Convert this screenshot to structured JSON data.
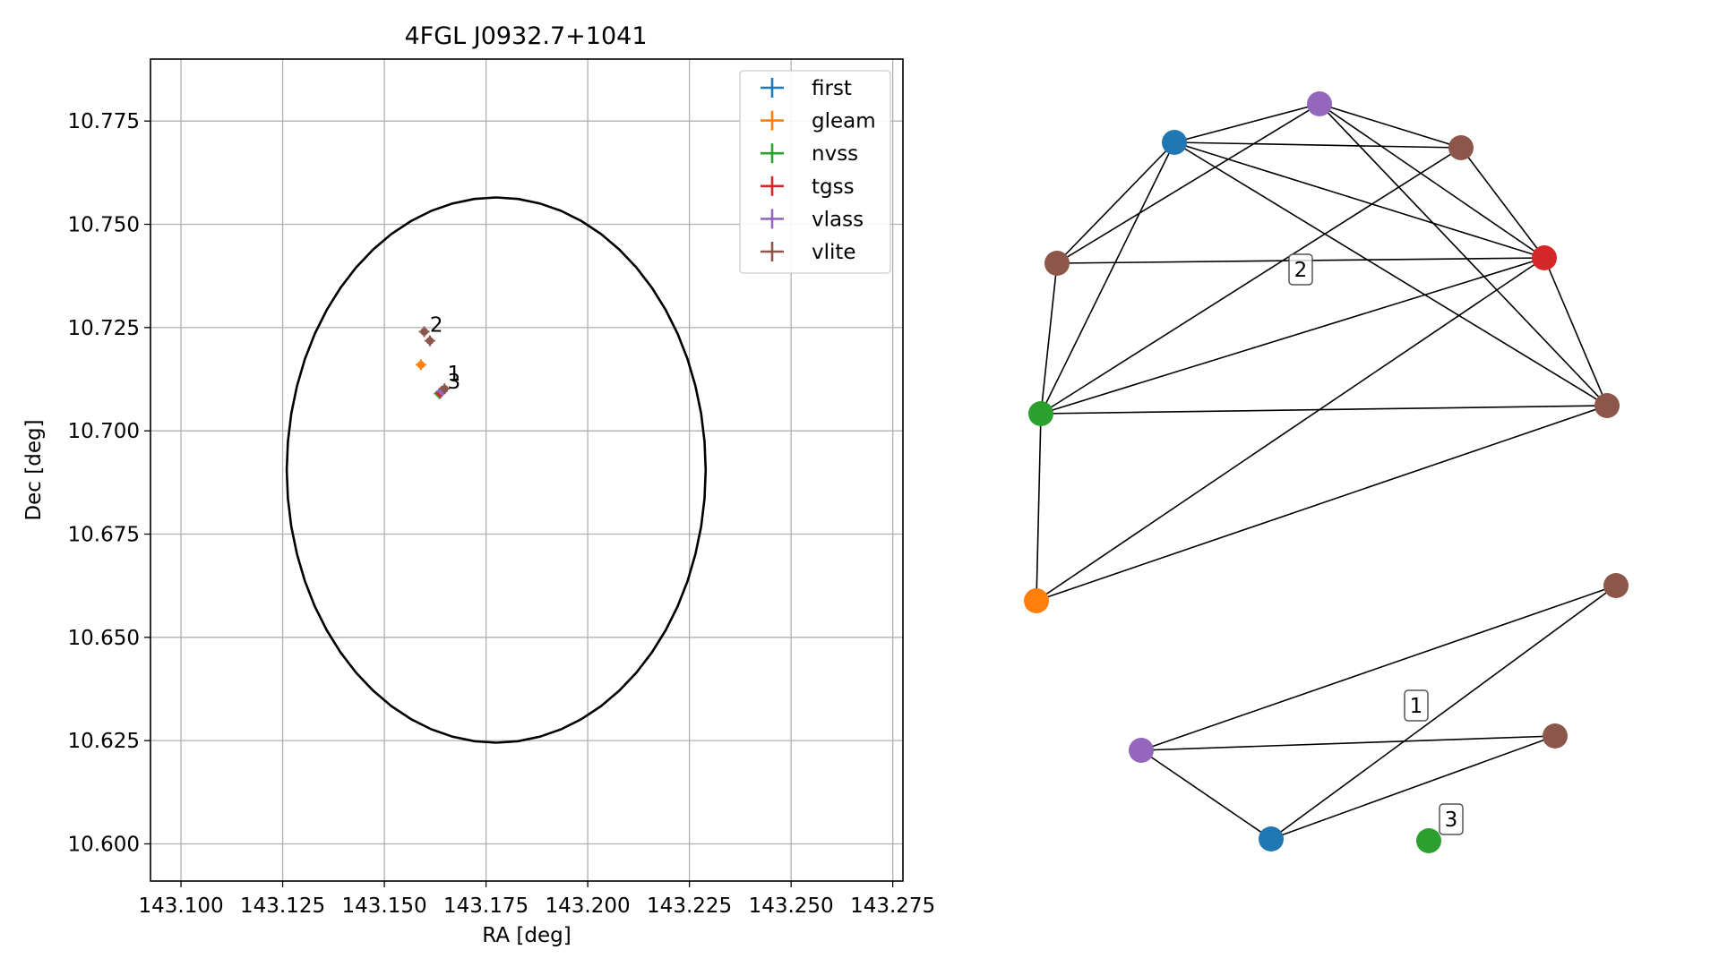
{
  "chart_data": [
    {
      "type": "scatter",
      "title": "4FGL J0932.7+1041",
      "xlabel": "RA [deg]",
      "ylabel": "Dec [deg]",
      "xlim": [
        143.0925,
        143.2775
      ],
      "ylim": [
        10.591,
        10.79
      ],
      "xticks": [
        143.1,
        143.125,
        143.15,
        143.175,
        143.2,
        143.225,
        143.25,
        143.275
      ],
      "xtick_labels": [
        "143.100",
        "143.125",
        "143.150",
        "143.175",
        "143.200",
        "143.225",
        "143.250",
        "143.275"
      ],
      "yticks": [
        10.6,
        10.625,
        10.65,
        10.675,
        10.7,
        10.725,
        10.75,
        10.775
      ],
      "ytick_labels": [
        "10.600",
        "10.625",
        "10.650",
        "10.675",
        "10.700",
        "10.725",
        "10.750",
        "10.775"
      ],
      "grid": true,
      "legend_position": "top-right",
      "ellipse": {
        "center": [
          143.1775,
          10.6905
        ],
        "ra_radius": 0.0515,
        "dec_radius": 0.066,
        "color": "#000000"
      },
      "series": [
        {
          "name": "first",
          "color": "#1f77b4",
          "points": [
            [
              143.164,
              10.7095
            ]
          ]
        },
        {
          "name": "gleam",
          "color": "#ff7f0e",
          "points": [
            [
              143.159,
              10.716
            ]
          ]
        },
        {
          "name": "nvss",
          "color": "#2ca02c",
          "points": [
            [
              143.1635,
              10.709
            ]
          ]
        },
        {
          "name": "tgss",
          "color": "#d62728",
          "points": [
            [
              143.1638,
              10.7092
            ]
          ]
        },
        {
          "name": "vlass",
          "color": "#9467bd",
          "points": [
            [
              143.1642,
              10.7096
            ]
          ]
        },
        {
          "name": "vlite",
          "color": "#8c564b",
          "points": [
            [
              143.1598,
              10.724
            ],
            [
              143.1612,
              10.7218
            ],
            [
              143.1648,
              10.7102
            ]
          ]
        }
      ],
      "annotations": [
        {
          "text": "2",
          "x": 143.1612,
          "y": 10.724
        },
        {
          "text": "1",
          "x": 143.1655,
          "y": 10.7122
        },
        {
          "text": "3",
          "x": 143.1655,
          "y": 10.7102
        }
      ]
    },
    {
      "type": "network",
      "clusters": [
        {
          "label": "2",
          "nodes": [
            {
              "id": "a",
              "series": "first",
              "color": "#1f77b4"
            },
            {
              "id": "b",
              "series": "vlass",
              "color": "#9467bd"
            },
            {
              "id": "c",
              "series": "vlite",
              "color": "#8c564b"
            },
            {
              "id": "d",
              "series": "vlite",
              "color": "#8c564b"
            },
            {
              "id": "e",
              "series": "tgss",
              "color": "#d62728"
            },
            {
              "id": "f",
              "series": "nvss",
              "color": "#2ca02c"
            },
            {
              "id": "g",
              "series": "vlite",
              "color": "#8c564b"
            },
            {
              "id": "h",
              "series": "gleam",
              "color": "#ff7f0e"
            }
          ],
          "edges": [
            [
              "a",
              "b"
            ],
            [
              "a",
              "c"
            ],
            [
              "a",
              "d"
            ],
            [
              "a",
              "e"
            ],
            [
              "a",
              "f"
            ],
            [
              "a",
              "g"
            ],
            [
              "b",
              "c"
            ],
            [
              "b",
              "d"
            ],
            [
              "b",
              "e"
            ],
            [
              "b",
              "g"
            ],
            [
              "c",
              "e"
            ],
            [
              "c",
              "f"
            ],
            [
              "d",
              "e"
            ],
            [
              "d",
              "f"
            ],
            [
              "e",
              "f"
            ],
            [
              "e",
              "g"
            ],
            [
              "e",
              "h"
            ],
            [
              "f",
              "g"
            ],
            [
              "f",
              "h"
            ],
            [
              "g",
              "h"
            ]
          ]
        },
        {
          "label": "1",
          "nodes": [
            {
              "id": "p",
              "series": "vlite",
              "color": "#8c564b"
            },
            {
              "id": "q",
              "series": "vlass",
              "color": "#9467bd"
            },
            {
              "id": "r",
              "series": "vlite",
              "color": "#8c564b"
            },
            {
              "id": "s",
              "series": "first",
              "color": "#1f77b4"
            }
          ],
          "edges": [
            [
              "q",
              "p"
            ],
            [
              "s",
              "p"
            ],
            [
              "q",
              "r"
            ],
            [
              "q",
              "s"
            ],
            [
              "s",
              "r"
            ]
          ]
        },
        {
          "label": "3",
          "nodes": [
            {
              "id": "t",
              "series": "nvss",
              "color": "#2ca02c"
            }
          ],
          "edges": []
        }
      ]
    }
  ]
}
